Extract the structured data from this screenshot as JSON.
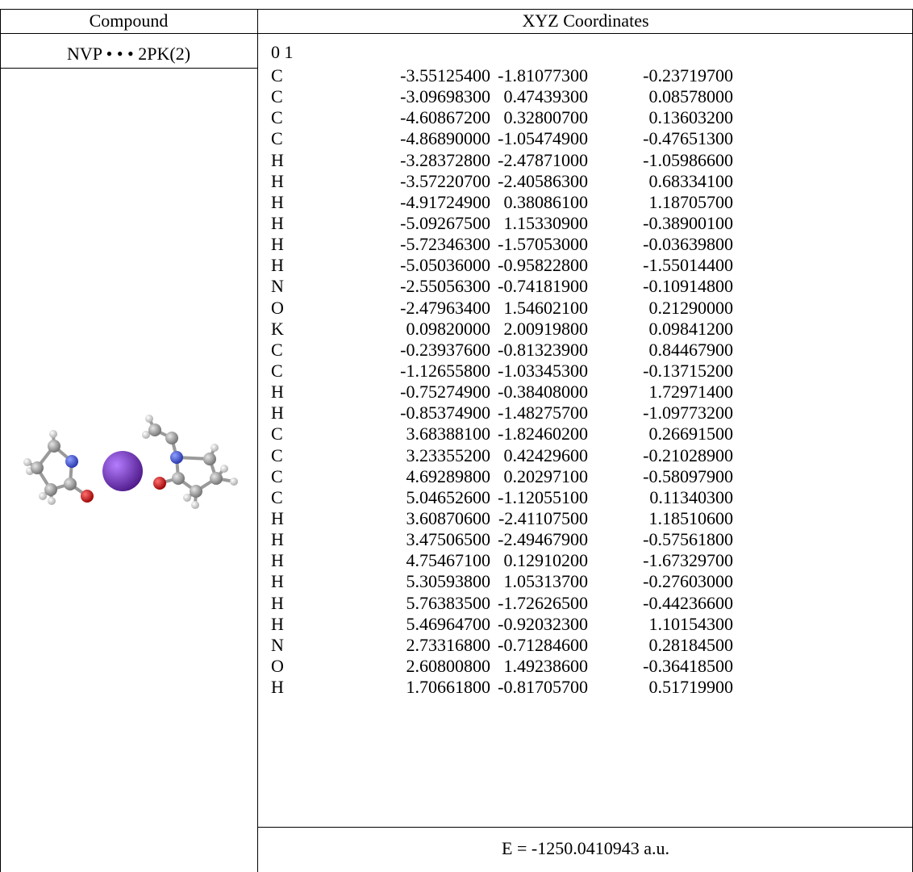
{
  "header": {
    "compound": "Compound",
    "coords": "XYZ Coordinates"
  },
  "compound_name": "NVP • • • 2PK(2)",
  "charge_multiplicity": "0 1",
  "atoms": [
    {
      "el": "C",
      "x": "-3.55125400",
      "y": "-1.81077300",
      "z": "-0.23719700"
    },
    {
      "el": "C",
      "x": "-3.09698300",
      "y": "0.47439300",
      "z": "0.08578000"
    },
    {
      "el": "C",
      "x": "-4.60867200",
      "y": "0.32800700",
      "z": "0.13603200"
    },
    {
      "el": "C",
      "x": "-4.86890000",
      "y": "-1.05474900",
      "z": "-0.47651300"
    },
    {
      "el": "H",
      "x": "-3.28372800",
      "y": "-2.47871000",
      "z": "-1.05986600"
    },
    {
      "el": "H",
      "x": "-3.57220700",
      "y": "-2.40586300",
      "z": "0.68334100"
    },
    {
      "el": "H",
      "x": "-4.91724900",
      "y": "0.38086100",
      "z": "1.18705700"
    },
    {
      "el": "H",
      "x": "-5.09267500",
      "y": "1.15330900",
      "z": "-0.38900100"
    },
    {
      "el": "H",
      "x": "-5.72346300",
      "y": "-1.57053000",
      "z": "-0.03639800"
    },
    {
      "el": "H",
      "x": "-5.05036000",
      "y": "-0.95822800",
      "z": "-1.55014400"
    },
    {
      "el": "N",
      "x": "-2.55056300",
      "y": "-0.74181900",
      "z": "-0.10914800"
    },
    {
      "el": "O",
      "x": "-2.47963400",
      "y": "1.54602100",
      "z": "0.21290000"
    },
    {
      "el": "K",
      "x": "0.09820000",
      "y": "2.00919800",
      "z": "0.09841200"
    },
    {
      "el": "C",
      "x": "-0.23937600",
      "y": "-0.81323900",
      "z": "0.84467900"
    },
    {
      "el": "C",
      "x": "-1.12655800",
      "y": "-1.03345300",
      "z": "-0.13715200"
    },
    {
      "el": "H",
      "x": "-0.75274900",
      "y": "-0.38408000",
      "z": "1.72971400"
    },
    {
      "el": "H",
      "x": "-0.85374900",
      "y": "-1.48275700",
      "z": "-1.09773200"
    },
    {
      "el": "C",
      "x": "3.68388100",
      "y": "-1.82460200",
      "z": "0.26691500"
    },
    {
      "el": "C",
      "x": "3.23355200",
      "y": "0.42429600",
      "z": "-0.21028900"
    },
    {
      "el": "C",
      "x": "4.69289800",
      "y": "0.20297100",
      "z": "-0.58097900"
    },
    {
      "el": "C",
      "x": "5.04652600",
      "y": "-1.12055100",
      "z": "0.11340300"
    },
    {
      "el": "H",
      "x": "3.60870600",
      "y": "-2.41107500",
      "z": "1.18510600"
    },
    {
      "el": "H",
      "x": "3.47506500",
      "y": "-2.49467900",
      "z": "-0.57561800"
    },
    {
      "el": "H",
      "x": "4.75467100",
      "y": "0.12910200",
      "z": "-1.67329700"
    },
    {
      "el": "H",
      "x": "5.30593800",
      "y": "1.05313700",
      "z": "-0.27603000"
    },
    {
      "el": "H",
      "x": "5.76383500",
      "y": "-1.72626500",
      "z": "-0.44236600"
    },
    {
      "el": "H",
      "x": "5.46964700",
      "y": "-0.92032300",
      "z": "1.10154300"
    },
    {
      "el": "N",
      "x": "2.73316800",
      "y": "-0.71284600",
      "z": "0.28184500"
    },
    {
      "el": "O",
      "x": "2.60800800",
      "y": "1.49238600",
      "z": "-0.36418500"
    },
    {
      "el": "H",
      "x": "1.70661800",
      "y": "-0.81705700",
      "z": "0.51719900"
    }
  ],
  "energy": "E = -1250.0410943 a.u.",
  "colors": {
    "carbon": "#8c8c8c",
    "hydrogen": "#d9d9d9",
    "nitrogen": "#3a4fd0",
    "oxygen": "#cc0000",
    "potassium": "#7a2fc0"
  }
}
